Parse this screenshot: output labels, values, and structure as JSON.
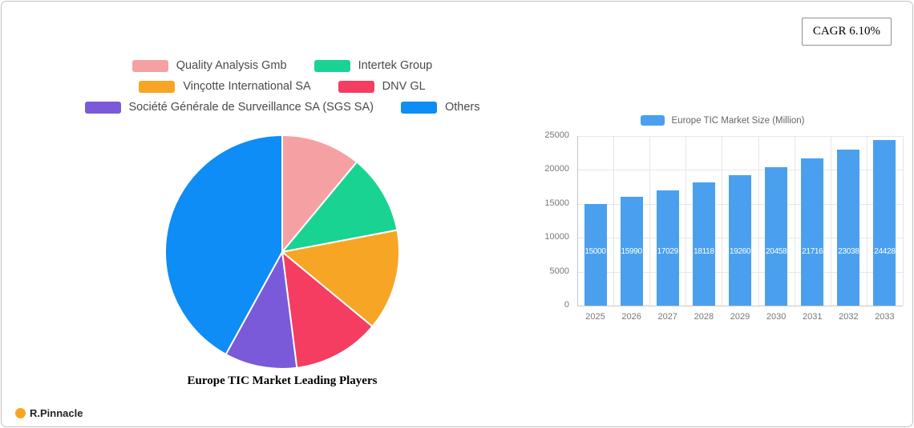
{
  "badge": {
    "cagr_label": "CAGR 6.10%"
  },
  "logo": {
    "text": "R.Pinnacle",
    "dot_color": "#F6A623"
  },
  "chart_data": [
    {
      "type": "pie",
      "title": "Europe TIC Market Leading Players",
      "labels": [
        "Quality Analysis Gmb",
        "Intertek Group",
        "Vinçotte International SA",
        "DNV GL",
        "Société Générale de Surveillance SA (SGS SA)",
        "Others"
      ],
      "values": [
        11,
        11,
        14,
        12,
        10,
        42
      ],
      "colors": [
        "#F5A1A3",
        "#19D392",
        "#F7A525",
        "#F43D61",
        "#7A5AD8",
        "#0D8DF5"
      ],
      "legend_position": "top"
    },
    {
      "type": "bar",
      "legend": "Europe TIC Market Size (Million)",
      "categories": [
        "2025",
        "2026",
        "2027",
        "2028",
        "2029",
        "2030",
        "2031",
        "2032",
        "2033"
      ],
      "values": [
        15000,
        15990,
        17029,
        18118,
        19260,
        20458,
        21716,
        23038,
        24428
      ],
      "bar_color": "#4AA0EF",
      "ylim": [
        0,
        25000
      ],
      "yticks": [
        0,
        5000,
        10000,
        15000,
        20000,
        25000
      ],
      "grid": true,
      "legend_position": "top"
    }
  ]
}
